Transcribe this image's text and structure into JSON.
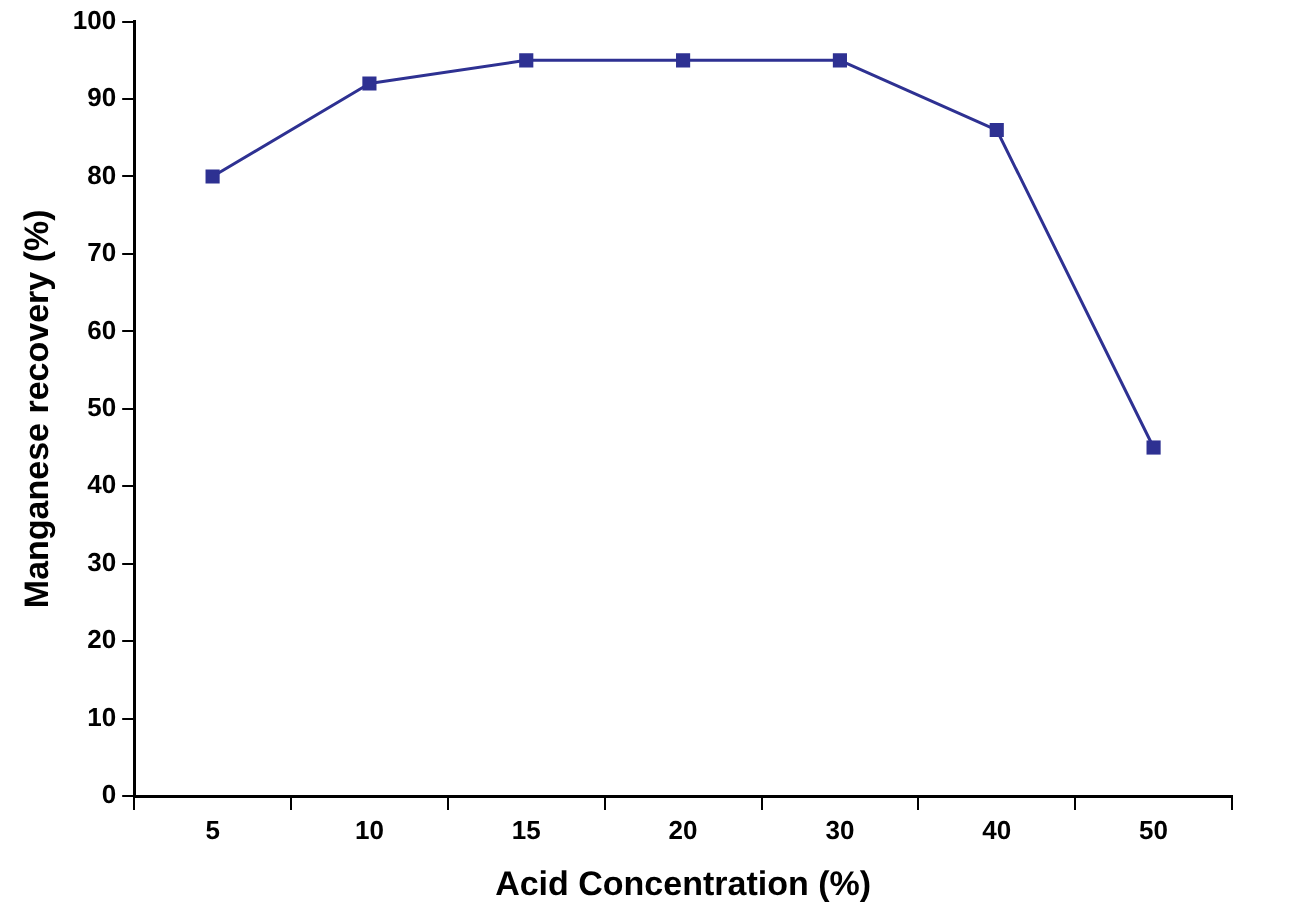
{
  "chart_data": {
    "type": "line",
    "xlabel": "Acid Concentration (%)",
    "ylabel": "Manganese recovery (%)",
    "categories": [
      "5",
      "10",
      "15",
      "20",
      "30",
      "40",
      "50"
    ],
    "series": [
      {
        "color": "#2e3192",
        "values": [
          80,
          92,
          95,
          95,
          95,
          86,
          45
        ]
      }
    ],
    "ylim": [
      0,
      100
    ],
    "yticks": [
      0,
      10,
      20,
      30,
      40,
      50,
      60,
      70,
      80,
      90,
      100
    ],
    "grid": false,
    "legend": false,
    "marker": "square",
    "line_style": "solid"
  }
}
